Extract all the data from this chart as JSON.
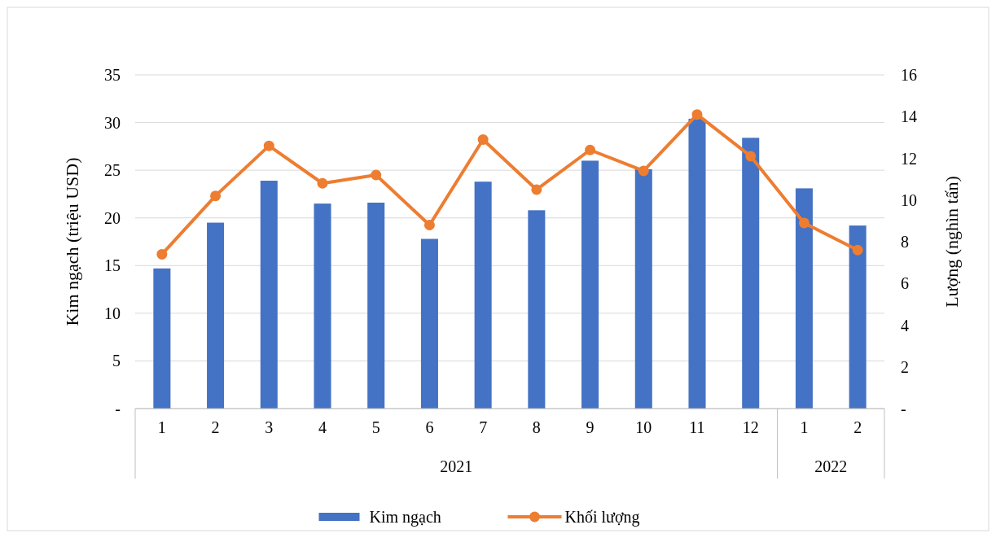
{
  "chart_data": {
    "type": "bar",
    "categories": [
      "1",
      "2",
      "3",
      "4",
      "5",
      "6",
      "7",
      "8",
      "9",
      "10",
      "11",
      "12",
      "1",
      "2"
    ],
    "ylabel": "Kim ngạch (triệu USD)",
    "y2label": "Lượng (nghìn tấn)",
    "annotations": [
      "2021",
      "2022"
    ],
    "series": [
      {
        "name": "Kim ngạch",
        "color": "#4472c4",
        "values": [
          14.7,
          19.5,
          23.9,
          21.5,
          21.6,
          17.8,
          23.8,
          20.8,
          26.0,
          25.1,
          30.4,
          28.4,
          23.1,
          19.2
        ]
      },
      {
        "name": "Khối lượng",
        "type": "line",
        "axis": "y2",
        "color": "#ed7d31",
        "marker": "circle",
        "values": [
          7.4,
          10.2,
          12.6,
          10.8,
          11.2,
          8.8,
          12.9,
          10.5,
          12.4,
          11.4,
          14.1,
          12.1,
          8.9,
          7.6
        ]
      }
    ],
    "ylim": [
      0,
      35
    ],
    "yticks": [
      {
        "value": 0,
        "label": "-"
      },
      5,
      10,
      15,
      20,
      25,
      30,
      35
    ],
    "y2lim": [
      0,
      16
    ],
    "y2ticks": [
      {
        "value": 0,
        "label": "-"
      },
      2,
      4,
      6,
      8,
      10,
      12,
      14,
      16
    ],
    "grid": "y",
    "legend": "bottom"
  }
}
